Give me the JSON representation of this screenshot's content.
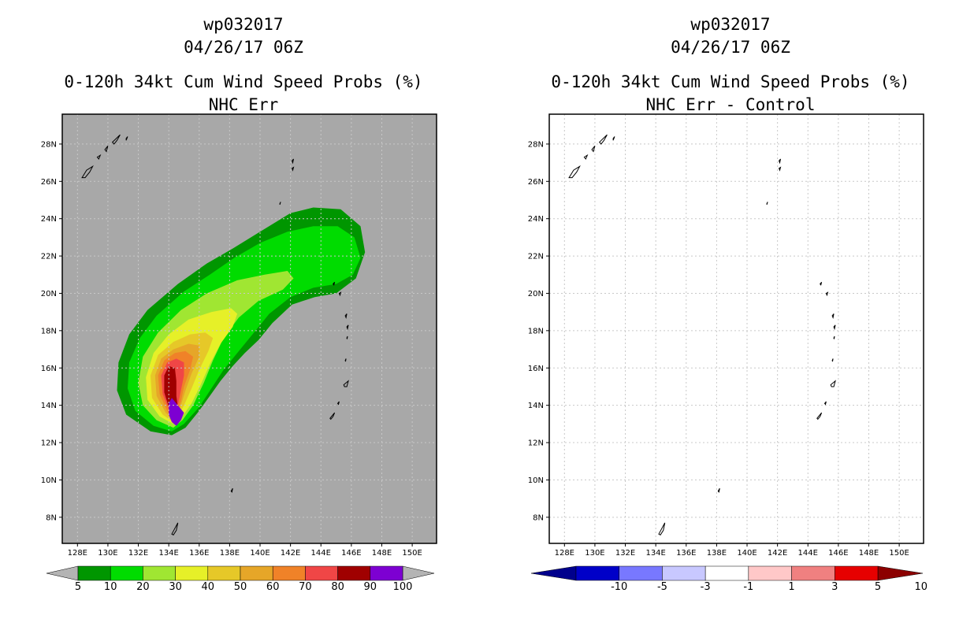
{
  "left_panel": {
    "title_line1": "wp032017",
    "title_line2": "04/26/17 06Z",
    "title_line3": "0-120h 34kt Cum Wind Speed Probs (%)",
    "title_line4": "NHC Err"
  },
  "right_panel": {
    "title_line1": "wp032017",
    "title_line2": "04/26/17 06Z",
    "title_line3": "0-120h 34kt Cum Wind Speed Probs (%)",
    "title_line4": "NHC Err - Control"
  },
  "colors": {
    "map_background": "#a8a8a8",
    "grid_line": "#c8c8c8",
    "prob_scale": [
      "#009600",
      "#00dc00",
      "#a0e632",
      "#e6f028",
      "#e6c828",
      "#e6a628",
      "#f08228",
      "#f04646",
      "#a00000",
      "#7d00d2"
    ],
    "diff_scale": [
      "#0000c8",
      "#7878ff",
      "#c8c8ff",
      "#ffffff",
      "#ffc8c8",
      "#f08080",
      "#e60000"
    ],
    "arrow_gray": "#b4b4b4",
    "arrow_low": "#00008c",
    "arrow_high": "#8c0000"
  },
  "chart_data": [
    {
      "type": "heatmap",
      "title": "0-120h 34kt Cum Wind Speed Probs (%)",
      "subtitle": "NHC Err",
      "storm_id": "wp032017",
      "datetime": "04/26/17 06Z",
      "xlim": [
        127,
        151.6
      ],
      "ylim": [
        6.6,
        29.6
      ],
      "x_ticks": [
        128,
        130,
        132,
        134,
        136,
        138,
        140,
        142,
        144,
        146,
        148,
        150
      ],
      "x_tick_labels": [
        "128E",
        "130E",
        "132E",
        "134E",
        "136E",
        "138E",
        "140E",
        "142E",
        "144E",
        "146E",
        "148E",
        "150E"
      ],
      "y_ticks": [
        8,
        10,
        12,
        14,
        16,
        18,
        20,
        22,
        24,
        26,
        28
      ],
      "y_tick_labels": [
        "8N",
        "10N",
        "12N",
        "14N",
        "16N",
        "18N",
        "20N",
        "22N",
        "24N",
        "26N",
        "28N"
      ],
      "grid": true,
      "colorbar_levels": [
        "5",
        "10",
        "20",
        "30",
        "40",
        "50",
        "60",
        "70",
        "80",
        "90",
        "100"
      ],
      "contour_regions": [
        {
          "level": 5,
          "polygon": [
            [
              134.2,
              12.4
            ],
            [
              132.8,
              12.6
            ],
            [
              131.2,
              13.5
            ],
            [
              130.6,
              14.8
            ],
            [
              130.7,
              16.3
            ],
            [
              131.4,
              17.8
            ],
            [
              132.6,
              19.1
            ],
            [
              134.6,
              20.5
            ],
            [
              136.5,
              21.6
            ],
            [
              138.2,
              22.4
            ],
            [
              140.0,
              23.3
            ],
            [
              142.0,
              24.3
            ],
            [
              143.5,
              24.6
            ],
            [
              145.3,
              24.5
            ],
            [
              146.6,
              23.6
            ],
            [
              146.9,
              22.2
            ],
            [
              146.3,
              20.8
            ],
            [
              145.0,
              20.0
            ],
            [
              143.6,
              19.8
            ],
            [
              142.1,
              19.4
            ],
            [
              140.8,
              18.4
            ],
            [
              139.9,
              17.5
            ],
            [
              139.0,
              16.8
            ],
            [
              138.2,
              16.1
            ],
            [
              137.4,
              15.3
            ],
            [
              136.7,
              14.5
            ],
            [
              135.9,
              13.6
            ],
            [
              135.1,
              12.8
            ]
          ]
        },
        {
          "level": 10,
          "polygon": [
            [
              134.2,
              12.6
            ],
            [
              133.0,
              12.9
            ],
            [
              131.8,
              13.7
            ],
            [
              131.3,
              14.9
            ],
            [
              131.4,
              16.3
            ],
            [
              132.1,
              17.6
            ],
            [
              133.2,
              18.8
            ],
            [
              135.0,
              20.1
            ],
            [
              136.7,
              21.0
            ],
            [
              138.3,
              21.9
            ],
            [
              140.0,
              22.7
            ],
            [
              141.8,
              23.3
            ],
            [
              143.5,
              23.6
            ],
            [
              145.1,
              23.6
            ],
            [
              146.2,
              23.0
            ],
            [
              146.6,
              21.9
            ],
            [
              146.1,
              21.0
            ],
            [
              145.0,
              20.5
            ],
            [
              143.5,
              20.3
            ],
            [
              142.0,
              19.8
            ],
            [
              140.6,
              18.9
            ],
            [
              139.5,
              17.8
            ],
            [
              138.6,
              16.9
            ],
            [
              137.6,
              15.9
            ],
            [
              136.8,
              14.9
            ],
            [
              136.0,
              13.9
            ],
            [
              135.0,
              13.0
            ]
          ]
        },
        {
          "level": 20,
          "polygon": [
            [
              134.3,
              12.8
            ],
            [
              133.2,
              13.2
            ],
            [
              132.3,
              14.0
            ],
            [
              132.0,
              15.2
            ],
            [
              132.3,
              16.6
            ],
            [
              133.3,
              17.9
            ],
            [
              134.8,
              19.1
            ],
            [
              136.5,
              20.0
            ],
            [
              138.5,
              20.7
            ],
            [
              140.3,
              21.0
            ],
            [
              141.8,
              21.2
            ],
            [
              142.2,
              20.8
            ],
            [
              141.5,
              20.2
            ],
            [
              139.9,
              19.6
            ],
            [
              138.6,
              18.7
            ],
            [
              137.6,
              17.6
            ],
            [
              136.9,
              16.4
            ],
            [
              136.3,
              15.2
            ],
            [
              135.6,
              14.0
            ],
            [
              134.9,
              13.2
            ]
          ]
        },
        {
          "level": 30,
          "polygon": [
            [
              134.3,
              13.0
            ],
            [
              133.4,
              13.4
            ],
            [
              132.6,
              14.3
            ],
            [
              132.5,
              15.5
            ],
            [
              133.0,
              16.8
            ],
            [
              134.0,
              17.8
            ],
            [
              135.3,
              18.6
            ],
            [
              136.8,
              19.0
            ],
            [
              138.1,
              19.2
            ],
            [
              138.5,
              18.9
            ],
            [
              138.2,
              18.2
            ],
            [
              137.4,
              17.3
            ],
            [
              136.7,
              16.2
            ],
            [
              136.1,
              15.1
            ],
            [
              135.5,
              14.1
            ],
            [
              134.8,
              13.3
            ]
          ]
        },
        {
          "level": 40,
          "polygon": [
            [
              134.3,
              13.1
            ],
            [
              133.6,
              13.5
            ],
            [
              132.9,
              14.4
            ],
            [
              132.8,
              15.6
            ],
            [
              133.3,
              16.7
            ],
            [
              134.3,
              17.4
            ],
            [
              135.4,
              17.8
            ],
            [
              136.4,
              17.9
            ],
            [
              136.9,
              17.6
            ],
            [
              136.6,
              16.9
            ],
            [
              136.0,
              15.9
            ],
            [
              135.5,
              14.9
            ],
            [
              135.0,
              14.0
            ],
            [
              134.6,
              13.4
            ]
          ]
        },
        {
          "level": 50,
          "polygon": [
            [
              134.3,
              13.2
            ],
            [
              133.8,
              13.6
            ],
            [
              133.2,
              14.5
            ],
            [
              133.1,
              15.6
            ],
            [
              133.5,
              16.5
            ],
            [
              134.3,
              17.0
            ],
            [
              135.3,
              17.3
            ],
            [
              136.0,
              17.2
            ],
            [
              136.0,
              16.6
            ],
            [
              135.5,
              15.7
            ],
            [
              135.1,
              14.8
            ],
            [
              134.8,
              14.0
            ],
            [
              134.5,
              13.4
            ]
          ]
        },
        {
          "level": 60,
          "polygon": [
            [
              134.3,
              13.3
            ],
            [
              133.9,
              13.7
            ],
            [
              133.4,
              14.6
            ],
            [
              133.3,
              15.6
            ],
            [
              133.7,
              16.4
            ],
            [
              134.4,
              16.8
            ],
            [
              135.1,
              16.9
            ],
            [
              135.6,
              16.6
            ],
            [
              135.4,
              15.9
            ],
            [
              135.0,
              15.0
            ],
            [
              134.8,
              14.2
            ],
            [
              134.5,
              13.6
            ]
          ]
        },
        {
          "level": 70,
          "polygon": [
            [
              134.3,
              13.4
            ],
            [
              134.0,
              13.8
            ],
            [
              133.6,
              14.6
            ],
            [
              133.5,
              15.6
            ],
            [
              133.9,
              16.3
            ],
            [
              134.5,
              16.5
            ],
            [
              135.0,
              16.3
            ],
            [
              135.0,
              15.6
            ],
            [
              134.8,
              14.8
            ],
            [
              134.6,
              14.0
            ]
          ]
        },
        {
          "level": 80,
          "polygon": [
            [
              134.3,
              13.5
            ],
            [
              134.0,
              13.9
            ],
            [
              133.7,
              14.7
            ],
            [
              133.7,
              15.6
            ],
            [
              134.0,
              16.1
            ],
            [
              134.4,
              16.0
            ],
            [
              134.5,
              15.3
            ],
            [
              134.5,
              14.5
            ],
            [
              134.6,
              13.9
            ]
          ]
        },
        {
          "level": 90,
          "polygon": [
            [
              134.2,
              13.1
            ],
            [
              134.0,
              13.5
            ],
            [
              134.0,
              14.1
            ],
            [
              134.2,
              14.4
            ],
            [
              134.6,
              14.0
            ],
            [
              135.0,
              13.6
            ],
            [
              134.8,
              13.2
            ],
            [
              134.5,
              12.9
            ]
          ]
        }
      ]
    },
    {
      "type": "heatmap",
      "title": "0-120h 34kt Cum Wind Speed Probs (%)",
      "subtitle": "NHC Err - Control",
      "storm_id": "wp032017",
      "datetime": "04/26/17 06Z",
      "xlim": [
        127,
        151.6
      ],
      "ylim": [
        6.6,
        29.6
      ],
      "x_ticks": [
        128,
        130,
        132,
        134,
        136,
        138,
        140,
        142,
        144,
        146,
        148,
        150
      ],
      "x_tick_labels": [
        "128E",
        "130E",
        "132E",
        "134E",
        "136E",
        "138E",
        "140E",
        "142E",
        "144E",
        "146E",
        "148E",
        "150E"
      ],
      "y_ticks": [
        8,
        10,
        12,
        14,
        16,
        18,
        20,
        22,
        24,
        26,
        28
      ],
      "y_tick_labels": [
        "8N",
        "10N",
        "12N",
        "14N",
        "16N",
        "18N",
        "20N",
        "22N",
        "24N",
        "26N",
        "28N"
      ],
      "grid": true,
      "colorbar_levels": [
        "-10",
        "-5",
        "-3",
        "-1",
        "1",
        "3",
        "5",
        "10"
      ],
      "contour_regions": []
    }
  ],
  "land_outlines": [
    [
      [
        128.3,
        26.2
      ],
      [
        128.6,
        26.6
      ],
      [
        129.0,
        26.8
      ],
      [
        128.8,
        26.5
      ],
      [
        128.5,
        26.2
      ]
    ],
    [
      [
        129.3,
        27.3
      ],
      [
        129.5,
        27.4
      ],
      [
        129.4,
        27.2
      ]
    ],
    [
      [
        129.8,
        27.7
      ],
      [
        130.0,
        27.9
      ],
      [
        129.9,
        27.6
      ]
    ],
    [
      [
        130.3,
        28.1
      ],
      [
        130.8,
        28.5
      ],
      [
        130.6,
        28.2
      ],
      [
        130.4,
        28.0
      ]
    ],
    [
      [
        131.2,
        28.3
      ],
      [
        131.3,
        28.4
      ],
      [
        131.2,
        28.2
      ]
    ],
    [
      [
        142.1,
        27.1
      ],
      [
        142.2,
        27.2
      ],
      [
        142.15,
        27.0
      ]
    ],
    [
      [
        142.1,
        26.7
      ],
      [
        142.2,
        26.75
      ],
      [
        142.15,
        26.6
      ]
    ],
    [
      [
        141.3,
        24.8
      ],
      [
        141.35,
        24.9
      ],
      [
        141.3,
        24.75
      ]
    ],
    [
      [
        144.8,
        20.5
      ],
      [
        144.9,
        20.6
      ],
      [
        144.85,
        20.45
      ]
    ],
    [
      [
        145.2,
        20.0
      ],
      [
        145.3,
        20.05
      ],
      [
        145.25,
        19.9
      ]
    ],
    [
      [
        145.6,
        18.8
      ],
      [
        145.7,
        18.9
      ],
      [
        145.65,
        18.7
      ]
    ],
    [
      [
        145.7,
        18.2
      ],
      [
        145.8,
        18.3
      ],
      [
        145.75,
        18.1
      ]
    ],
    [
      [
        145.7,
        17.6
      ],
      [
        145.75,
        17.7
      ],
      [
        145.72,
        17.55
      ]
    ],
    [
      [
        145.6,
        16.4
      ],
      [
        145.65,
        16.5
      ],
      [
        145.62,
        16.35
      ]
    ],
    [
      [
        145.5,
        15.1
      ],
      [
        145.8,
        15.3
      ],
      [
        145.7,
        15.0
      ],
      [
        145.55,
        15.0
      ]
    ],
    [
      [
        145.1,
        14.1
      ],
      [
        145.2,
        14.2
      ],
      [
        145.15,
        14.05
      ]
    ],
    [
      [
        144.6,
        13.3
      ],
      [
        144.9,
        13.6
      ],
      [
        144.8,
        13.4
      ],
      [
        144.65,
        13.25
      ]
    ],
    [
      [
        134.2,
        7.1
      ],
      [
        134.6,
        7.7
      ],
      [
        134.5,
        7.3
      ],
      [
        134.3,
        7.05
      ]
    ],
    [
      [
        138.1,
        9.4
      ],
      [
        138.2,
        9.55
      ],
      [
        138.15,
        9.35
      ]
    ]
  ]
}
